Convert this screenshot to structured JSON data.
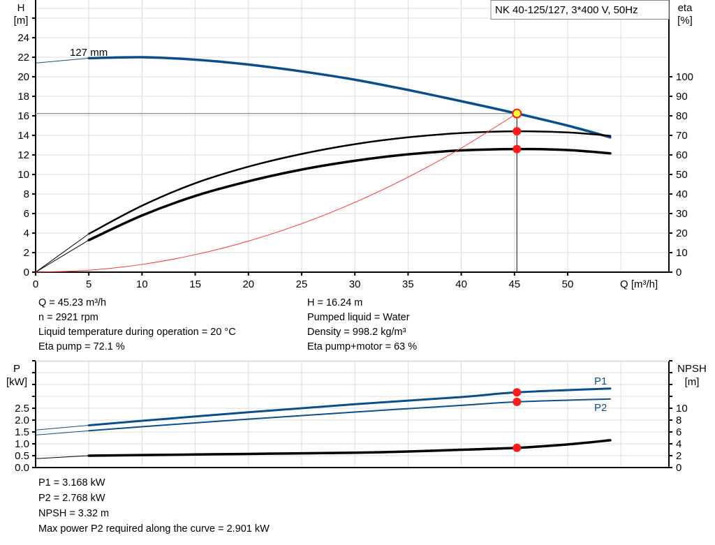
{
  "title_box": "NK 40-125/127, 3*400 V, 50Hz",
  "chart_data": [
    {
      "type": "line",
      "xlabel": "Q [m³/h]",
      "x_ticks": [
        "0",
        "5",
        "10",
        "15",
        "20",
        "25",
        "30",
        "35",
        "40",
        "45",
        "50"
      ],
      "xlim": [
        0,
        55
      ],
      "left_axis": {
        "label_top": "H",
        "label_unit": "[m]",
        "ylim": [
          0,
          26
        ],
        "ticks": [
          "0",
          "2",
          "4",
          "6",
          "8",
          "10",
          "12",
          "14",
          "16",
          "18",
          "20",
          "22",
          "24"
        ]
      },
      "right_axis": {
        "label_top": "eta",
        "label_unit": "[%]",
        "ylim": [
          0,
          100
        ],
        "ticks": [
          "0",
          "10",
          "20",
          "30",
          "40",
          "50",
          "60",
          "70",
          "80",
          "90",
          "100"
        ]
      },
      "grid": true,
      "curve_label": "127 mm",
      "series": [
        {
          "id": "head",
          "axis": "left",
          "color": "#0b4f8a",
          "points": [
            [
              0,
              21.4
            ],
            [
              5,
              21.9
            ],
            [
              10,
              22.0
            ],
            [
              15,
              21.75
            ],
            [
              20,
              21.25
            ],
            [
              25,
              20.55
            ],
            [
              30,
              19.7
            ],
            [
              35,
              18.65
            ],
            [
              40,
              17.5
            ],
            [
              45.23,
              16.24
            ],
            [
              50,
              15.0
            ],
            [
              54,
              13.8
            ]
          ]
        },
        {
          "id": "eta-pump",
          "axis": "right",
          "color": "#000000",
          "points": [
            [
              0,
              0
            ],
            [
              5,
              19.6
            ],
            [
              10,
              34
            ],
            [
              15,
              45.5
            ],
            [
              20,
              54
            ],
            [
              25,
              60.5
            ],
            [
              30,
              65.5
            ],
            [
              35,
              69
            ],
            [
              40,
              71.2
            ],
            [
              45.23,
              72.1
            ],
            [
              50,
              71.5
            ],
            [
              54,
              69.8
            ]
          ]
        },
        {
          "id": "eta-pump-motor",
          "axis": "right",
          "color": "#000000",
          "points": [
            [
              0,
              0
            ],
            [
              5,
              16.4
            ],
            [
              10,
              29
            ],
            [
              15,
              39
            ],
            [
              20,
              46.5
            ],
            [
              25,
              52.5
            ],
            [
              30,
              57
            ],
            [
              35,
              60.3
            ],
            [
              40,
              62.3
            ],
            [
              45.23,
              63
            ],
            [
              50,
              62.5
            ],
            [
              54,
              60.8
            ]
          ]
        },
        {
          "id": "system",
          "axis": "left",
          "color": "#ff3333",
          "points": [
            [
              0,
              0
            ],
            [
              5,
              0.2
            ],
            [
              10,
              0.79
            ],
            [
              15,
              1.79
            ],
            [
              20,
              3.18
            ],
            [
              25,
              4.96
            ],
            [
              30,
              7.14
            ],
            [
              35,
              9.72
            ],
            [
              40,
              12.7
            ],
            [
              45.23,
              16.24
            ]
          ]
        }
      ],
      "duty_point": {
        "Q": 45.23,
        "H": 16.24,
        "eta_pump": 72.1,
        "eta_pump_motor": 63
      }
    },
    {
      "type": "line",
      "xlim": [
        0,
        55
      ],
      "left_axis": {
        "label_top": "P",
        "label_unit": "[kW]",
        "ylim": [
          0,
          4.5
        ],
        "ticks": [
          "0.0",
          "0.5",
          "1.0",
          "1.5",
          "2.0",
          "2.5"
        ]
      },
      "right_axis": {
        "label_top": "NPSH",
        "label_unit": "[m]",
        "ylim": [
          0,
          18
        ],
        "ticks": [
          "0",
          "2",
          "4",
          "6",
          "8",
          "10"
        ]
      },
      "grid": true,
      "series": [
        {
          "id": "P1",
          "name": "P1",
          "axis": "left",
          "color": "#0b4f8a",
          "points": [
            [
              0,
              1.58
            ],
            [
              5,
              1.78
            ],
            [
              10,
              1.97
            ],
            [
              20,
              2.33
            ],
            [
              30,
              2.67
            ],
            [
              40,
              2.97
            ],
            [
              45.23,
              3.168
            ],
            [
              54,
              3.33
            ]
          ]
        },
        {
          "id": "P2",
          "name": "P2",
          "axis": "left",
          "color": "#0b4f8a",
          "points": [
            [
              0,
              1.37
            ],
            [
              5,
              1.55
            ],
            [
              10,
              1.72
            ],
            [
              20,
              2.04
            ],
            [
              30,
              2.34
            ],
            [
              40,
              2.62
            ],
            [
              45.23,
              2.768
            ],
            [
              54,
              2.89
            ]
          ]
        },
        {
          "id": "NPSH",
          "axis": "right",
          "color": "#000000",
          "points": [
            [
              0,
              1.5
            ],
            [
              5,
              2.0
            ],
            [
              10,
              2.1
            ],
            [
              20,
              2.3
            ],
            [
              30,
              2.5
            ],
            [
              35,
              2.7
            ],
            [
              40,
              3.0
            ],
            [
              45.23,
              3.32
            ],
            [
              50,
              3.9
            ],
            [
              54,
              4.6
            ]
          ]
        }
      ],
      "duty_point": {
        "Q": 45.23,
        "P1": 3.168,
        "P2": 2.768,
        "NPSH": 3.32
      }
    }
  ],
  "info_top": {
    "q": "Q = 45.23 m³/h",
    "n": "n = 2921 rpm",
    "temp": "Liquid temperature during operation = 20 °C",
    "eta_pump": "Eta pump = 72.1 %",
    "h": "H = 16.24 m",
    "liquid": "Pumped liquid = Water",
    "density": "Density = 998.2 kg/m³",
    "eta_pm": "Eta pump+motor = 63 %"
  },
  "info_bottom": {
    "p1": "P1 = 3.168 kW",
    "p2": "P2 = 2.768 kW",
    "npsh": "NPSH = 3.32 m",
    "max_p2": "Max power P2 required along the curve = 2.901 kW"
  }
}
